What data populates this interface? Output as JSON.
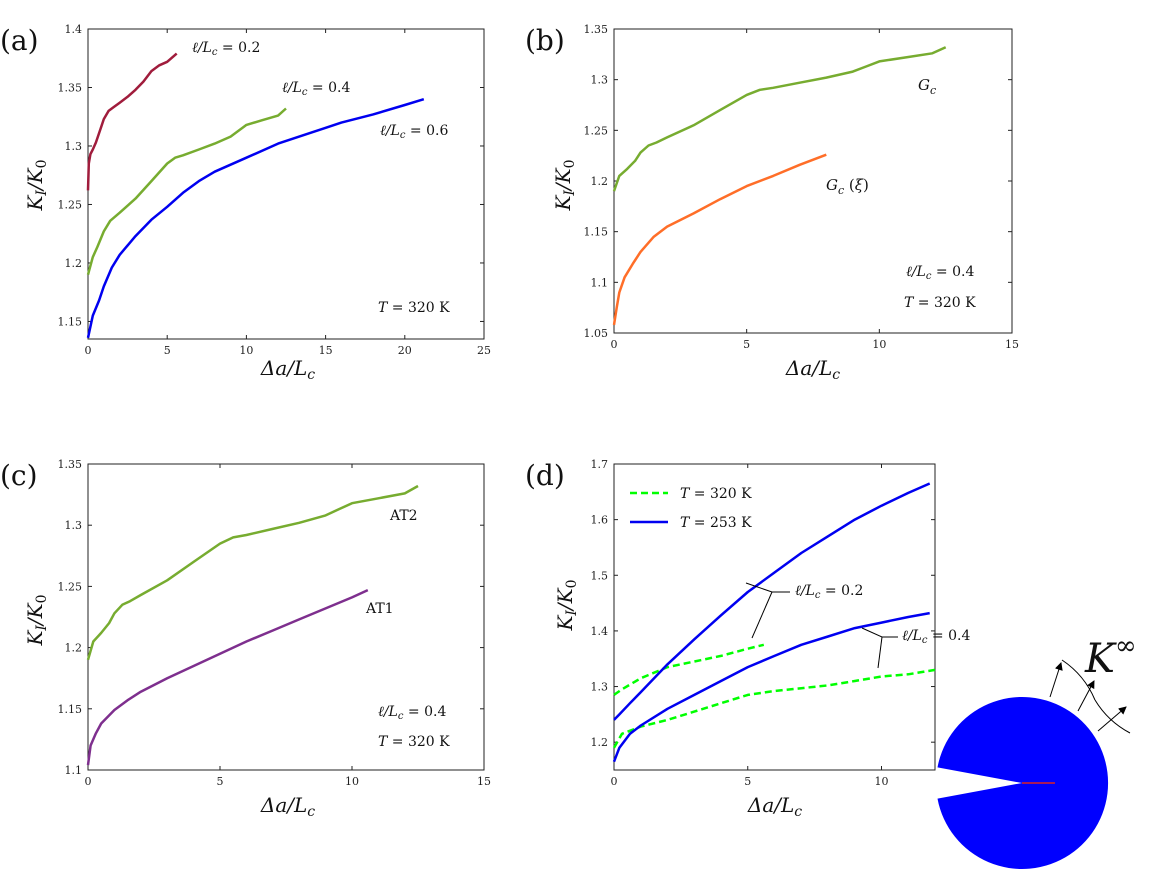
{
  "panel_labels": [
    "(a)",
    "(b)",
    "(c)",
    "(d)"
  ],
  "chart_data": [
    {
      "id": "a",
      "type": "line",
      "xlabel": "Δa/L_c",
      "ylabel": "K_I/K_0",
      "xlim": [
        0,
        25
      ],
      "ylim": [
        1.135,
        1.4
      ],
      "xticks": [
        "0",
        "5",
        "10",
        "15",
        "20",
        "25"
      ],
      "yticks": [
        "1.15",
        "1.2",
        "1.25",
        "1.3",
        "1.35",
        "1.4"
      ],
      "series": [
        {
          "name": "ℓ/L_c = 0.2",
          "color": "#a01c3c",
          "dash": false,
          "x": [
            0,
            0.05,
            0.15,
            0.3,
            0.5,
            0.8,
            1.0,
            1.3,
            1.6,
            2.0,
            2.5,
            3.0,
            3.5,
            4.0,
            4.5,
            5.0,
            5.6
          ],
          "y": [
            1.262,
            1.285,
            1.293,
            1.297,
            1.303,
            1.315,
            1.323,
            1.33,
            1.333,
            1.337,
            1.342,
            1.348,
            1.355,
            1.364,
            1.369,
            1.372,
            1.379
          ]
        },
        {
          "name": "ℓ/L_c = 0.4",
          "color": "#77ac30",
          "dash": false,
          "x": [
            0,
            0.3,
            0.6,
            1.0,
            1.4,
            2.0,
            3.0,
            4.0,
            5.0,
            5.5,
            6.0,
            7.0,
            8.0,
            9.0,
            9.5,
            10.0,
            11.0,
            12.0,
            12.5
          ],
          "y": [
            1.19,
            1.205,
            1.214,
            1.227,
            1.236,
            1.243,
            1.255,
            1.27,
            1.285,
            1.29,
            1.292,
            1.297,
            1.302,
            1.308,
            1.313,
            1.318,
            1.322,
            1.326,
            1.332
          ]
        },
        {
          "name": "ℓ/L_c = 0.6",
          "color": "#0000f0",
          "dash": false,
          "x": [
            0,
            0.3,
            0.7,
            1.0,
            1.5,
            2.0,
            3.0,
            4.0,
            5.0,
            6.0,
            7.0,
            8.0,
            10.0,
            12.0,
            14.0,
            16.0,
            18.0,
            20.0,
            21.2
          ],
          "y": [
            1.136,
            1.155,
            1.168,
            1.18,
            1.196,
            1.207,
            1.223,
            1.237,
            1.248,
            1.26,
            1.27,
            1.278,
            1.29,
            1.302,
            1.311,
            1.32,
            1.327,
            1.335,
            1.34
          ]
        }
      ],
      "annotations": [
        "ℓ/L_c = 0.2",
        "ℓ/L_c = 0.4",
        "ℓ/L_c = 0.6",
        "T = 320 K"
      ]
    },
    {
      "id": "b",
      "type": "line",
      "xlabel": "Δa/L_c",
      "ylabel": "K_I/K_0",
      "xlim": [
        0,
        15
      ],
      "ylim": [
        1.05,
        1.35
      ],
      "xticks": [
        "0",
        "5",
        "10",
        "15"
      ],
      "yticks": [
        "1.05",
        "1.1",
        "1.15",
        "1.2",
        "1.25",
        "1.3",
        "1.35"
      ],
      "series": [
        {
          "name": "G_c",
          "color": "#77ac30",
          "dash": false,
          "x": [
            0,
            0.2,
            0.5,
            0.8,
            1.0,
            1.3,
            1.6,
            2.0,
            3.0,
            4.0,
            5.0,
            5.5,
            6.0,
            7.0,
            8.0,
            9.0,
            9.5,
            10.0,
            11.0,
            12.0,
            12.5
          ],
          "y": [
            1.19,
            1.205,
            1.212,
            1.22,
            1.228,
            1.235,
            1.238,
            1.243,
            1.255,
            1.27,
            1.285,
            1.29,
            1.292,
            1.297,
            1.302,
            1.308,
            1.313,
            1.318,
            1.322,
            1.326,
            1.332
          ]
        },
        {
          "name": "G_c(ξ)",
          "color": "#ff6e28",
          "dash": false,
          "x": [
            0,
            0.1,
            0.2,
            0.4,
            0.7,
            1.0,
            1.5,
            2.0,
            3.0,
            4.0,
            5.0,
            6.0,
            7.0,
            8.0
          ],
          "y": [
            1.058,
            1.075,
            1.09,
            1.105,
            1.118,
            1.13,
            1.145,
            1.155,
            1.168,
            1.182,
            1.195,
            1.205,
            1.216,
            1.226
          ]
        }
      ],
      "annotations": [
        "G_c",
        "G_c (ξ)",
        "ℓ/L_c = 0.4",
        "T = 320 K"
      ]
    },
    {
      "id": "c",
      "type": "line",
      "xlabel": "Δa/L_c",
      "ylabel": "K_I/K_0",
      "xlim": [
        0,
        15
      ],
      "ylim": [
        1.1,
        1.35
      ],
      "xticks": [
        "0",
        "5",
        "10",
        "15"
      ],
      "yticks": [
        "1.1",
        "1.15",
        "1.2",
        "1.25",
        "1.3",
        "1.35"
      ],
      "series": [
        {
          "name": "AT2",
          "color": "#77ac30",
          "dash": false,
          "x": [
            0,
            0.2,
            0.5,
            0.8,
            1.0,
            1.3,
            1.6,
            2.0,
            3.0,
            4.0,
            5.0,
            5.5,
            6.0,
            7.0,
            8.0,
            9.0,
            9.5,
            10.0,
            11.0,
            12.0,
            12.5
          ],
          "y": [
            1.19,
            1.205,
            1.212,
            1.22,
            1.228,
            1.235,
            1.238,
            1.243,
            1.255,
            1.27,
            1.285,
            1.29,
            1.292,
            1.297,
            1.302,
            1.308,
            1.313,
            1.318,
            1.322,
            1.326,
            1.332
          ]
        },
        {
          "name": "AT1",
          "color": "#7e2f8e",
          "dash": false,
          "x": [
            0,
            0.1,
            0.3,
            0.5,
            1.0,
            1.5,
            2.0,
            3.0,
            4.0,
            5.0,
            6.0,
            7.0,
            8.0,
            9.0,
            10.0,
            10.6
          ],
          "y": [
            1.104,
            1.12,
            1.13,
            1.138,
            1.149,
            1.157,
            1.164,
            1.175,
            1.185,
            1.195,
            1.205,
            1.214,
            1.223,
            1.232,
            1.241,
            1.247
          ]
        }
      ],
      "annotations": [
        "AT2",
        "AT1",
        "ℓ/L_c = 0.4",
        "T = 320 K"
      ]
    },
    {
      "id": "d",
      "type": "line",
      "xlabel": "Δa/L_c",
      "ylabel": "K_I/K_0",
      "xlim": [
        0,
        12
      ],
      "ylim": [
        1.15,
        1.7
      ],
      "xticks": [
        "0",
        "5",
        "10"
      ],
      "yticks": [
        "1.2",
        "1.3",
        "1.4",
        "1.5",
        "1.6",
        "1.7"
      ],
      "series": [
        {
          "name": "T = 320 K (ℓ/L_c = 0.2)",
          "color": "#00ff00",
          "dash": true,
          "x": [
            0,
            0.3,
            1.0,
            2.0,
            3.0,
            4.0,
            5.0,
            5.6
          ],
          "y": [
            1.285,
            1.295,
            1.315,
            1.335,
            1.345,
            1.355,
            1.368,
            1.375
          ]
        },
        {
          "name": "T = 320 K (ℓ/L_c = 0.4)",
          "color": "#00ff00",
          "dash": true,
          "x": [
            0,
            0.3,
            1.0,
            2.0,
            3.0,
            4.0,
            5.0,
            6.0,
            7.0,
            8.0,
            9.0,
            10.0,
            11.0,
            12.0
          ],
          "y": [
            1.19,
            1.215,
            1.228,
            1.24,
            1.255,
            1.27,
            1.285,
            1.292,
            1.297,
            1.302,
            1.31,
            1.318,
            1.322,
            1.33
          ]
        },
        {
          "name": "T = 253 K (ℓ/L_c = 0.2)",
          "color": "#0000f0",
          "dash": false,
          "x": [
            0,
            0.2,
            0.6,
            1.0,
            2.0,
            3.0,
            4.0,
            5.0,
            6.0,
            7.0,
            8.0,
            9.0,
            10.0,
            11.0,
            11.8
          ],
          "y": [
            1.24,
            1.25,
            1.27,
            1.29,
            1.34,
            1.385,
            1.428,
            1.47,
            1.505,
            1.54,
            1.57,
            1.6,
            1.625,
            1.648,
            1.665
          ]
        },
        {
          "name": "T = 253 K (ℓ/L_c = 0.4)",
          "color": "#0000f0",
          "dash": false,
          "x": [
            0,
            0.2,
            0.6,
            1.0,
            2.0,
            3.0,
            4.0,
            5.0,
            6.0,
            7.0,
            8.0,
            9.0,
            10.0,
            11.0,
            11.8
          ],
          "y": [
            1.165,
            1.19,
            1.215,
            1.23,
            1.26,
            1.285,
            1.31,
            1.335,
            1.355,
            1.375,
            1.39,
            1.405,
            1.415,
            1.425,
            1.432
          ]
        }
      ],
      "legend": [
        "T = 320 K",
        "T = 253 K"
      ],
      "annotations": [
        "ℓ/L_c = 0.2",
        "ℓ/L_c = 0.4"
      ]
    }
  ],
  "inset": {
    "label": "K^∞",
    "disk_color": "#0000ff",
    "crack_color": "#dd2222"
  }
}
